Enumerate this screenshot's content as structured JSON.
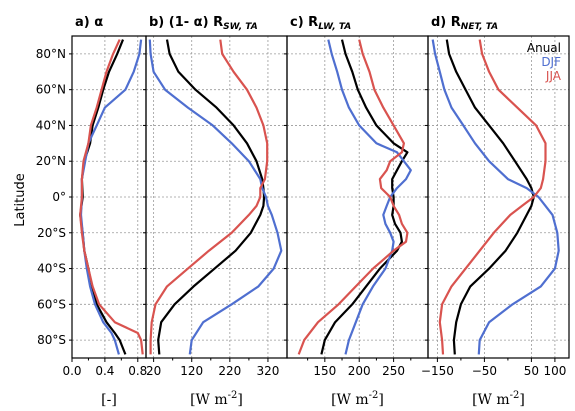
{
  "y_axis": {
    "label": "Latitude",
    "ticks": [
      {
        "value": 80,
        "label": "80°N"
      },
      {
        "value": 60,
        "label": "60°N"
      },
      {
        "value": 40,
        "label": "40°N"
      },
      {
        "value": 20,
        "label": "20°N"
      },
      {
        "value": 0,
        "label": "0°"
      },
      {
        "value": -20,
        "label": "20°S"
      },
      {
        "value": -40,
        "label": "40°S"
      },
      {
        "value": -60,
        "label": "60°S"
      },
      {
        "value": -80,
        "label": "80°S"
      }
    ]
  },
  "legend": [
    {
      "name": "Anual",
      "color": "#000000"
    },
    {
      "name": "DJF",
      "color": "#4f6fd0"
    },
    {
      "name": "JJA",
      "color": "#d9534f"
    }
  ],
  "chart_data": [
    {
      "type": "line",
      "title_prefix": "a) α",
      "title_sub": "",
      "unit_base": "[-]",
      "unit_sup": "",
      "xlim": [
        0.0,
        0.9
      ],
      "ylim": [
        -90,
        90
      ],
      "xticks": [
        0.0,
        0.4,
        0.8
      ],
      "xticklabels": [
        "0.0",
        "0.4",
        "0.8"
      ],
      "minor_xticks": [
        0.2,
        0.6
      ],
      "grid": true,
      "y": [
        88,
        80,
        70,
        60,
        50,
        40,
        30,
        20,
        10,
        0,
        -10,
        -20,
        -30,
        -40,
        -50,
        -60,
        -70,
        -76,
        -80,
        -88
      ],
      "series": [
        {
          "name": "Anual",
          "color": "#000000",
          "x": [
            0.62,
            0.55,
            0.45,
            0.38,
            0.32,
            0.25,
            0.22,
            0.15,
            0.12,
            0.13,
            0.1,
            0.13,
            0.15,
            0.2,
            0.24,
            0.3,
            0.42,
            0.52,
            0.58,
            0.65
          ]
        },
        {
          "name": "DJF",
          "color": "#4f6fd0",
          "x": [
            0.84,
            0.82,
            0.75,
            0.65,
            0.4,
            0.3,
            0.2,
            0.16,
            0.12,
            0.12,
            0.11,
            0.13,
            0.15,
            0.18,
            0.22,
            0.28,
            0.38,
            0.48,
            0.52,
            0.57
          ]
        },
        {
          "name": "JJA",
          "color": "#d9534f",
          "x": [
            0.58,
            0.5,
            0.42,
            0.36,
            0.3,
            0.23,
            0.2,
            0.14,
            0.12,
            0.12,
            0.1,
            0.12,
            0.15,
            0.2,
            0.25,
            0.33,
            0.52,
            0.8,
            0.84,
            0.86
          ]
        }
      ]
    },
    {
      "type": "line",
      "title_prefix": "b) (1- α) R",
      "title_sub": "SW, TA",
      "unit_base": "[W m",
      "unit_sup": "-2",
      "unit_end": "]",
      "xlim": [
        0,
        370
      ],
      "ylim": [
        -90,
        90
      ],
      "xticks": [
        20,
        120,
        220,
        320
      ],
      "xticklabels": [
        "20",
        "120",
        "220",
        "320"
      ],
      "minor_xticks": [
        70,
        170,
        270
      ],
      "grid": true,
      "y": [
        88,
        80,
        70,
        60,
        50,
        40,
        30,
        20,
        10,
        5,
        0,
        -5,
        -10,
        -20,
        -30,
        -40,
        -50,
        -60,
        -70,
        -80,
        -88
      ],
      "series": [
        {
          "name": "Anual",
          "color": "#000000",
          "x": [
            55,
            62,
            85,
            130,
            185,
            230,
            265,
            290,
            305,
            308,
            310,
            308,
            300,
            275,
            235,
            180,
            125,
            75,
            40,
            32,
            35
          ]
        },
        {
          "name": "DJF",
          "color": "#4f6fd0",
          "x": [
            10,
            12,
            20,
            50,
            110,
            175,
            225,
            270,
            300,
            305,
            315,
            320,
            330,
            345,
            355,
            335,
            295,
            225,
            150,
            120,
            115
          ]
        },
        {
          "name": "JJA",
          "color": "#d9534f",
          "x": [
            195,
            200,
            230,
            265,
            290,
            308,
            318,
            318,
            312,
            300,
            300,
            290,
            270,
            225,
            165,
            110,
            55,
            25,
            15,
            12,
            12
          ]
        }
      ]
    },
    {
      "type": "line",
      "title_prefix": "c) R",
      "title_sub": "LW, TA",
      "unit_base": "[W m",
      "unit_sup": "-2",
      "unit_end": "]",
      "xlim": [
        95,
        300
      ],
      "ylim": [
        -90,
        90
      ],
      "xticks": [
        150,
        200,
        250
      ],
      "xticklabels": [
        "150",
        "200",
        "250"
      ],
      "minor_xticks": [
        125,
        175,
        225,
        275
      ],
      "grid": true,
      "y": [
        88,
        80,
        70,
        60,
        50,
        40,
        30,
        25,
        20,
        15,
        10,
        5,
        0,
        -5,
        -10,
        -15,
        -20,
        -25,
        -30,
        -40,
        -50,
        -60,
        -70,
        -80,
        -88
      ],
      "series": [
        {
          "name": "Anual",
          "color": "#000000",
          "x": [
            175,
            180,
            190,
            198,
            210,
            225,
            250,
            270,
            262,
            255,
            248,
            248,
            250,
            250,
            248,
            252,
            260,
            262,
            255,
            230,
            210,
            190,
            165,
            150,
            145
          ]
        },
        {
          "name": "DJF",
          "color": "#4f6fd0",
          "x": [
            155,
            160,
            168,
            175,
            185,
            200,
            225,
            255,
            265,
            275,
            268,
            255,
            245,
            240,
            235,
            238,
            245,
            250,
            248,
            238,
            220,
            205,
            195,
            185,
            180
          ]
        },
        {
          "name": "JJA",
          "color": "#d9534f",
          "x": [
            200,
            205,
            215,
            222,
            235,
            250,
            265,
            262,
            245,
            240,
            230,
            232,
            245,
            250,
            258,
            262,
            270,
            268,
            250,
            220,
            195,
            170,
            140,
            120,
            112
          ]
        }
      ]
    },
    {
      "type": "line",
      "title_prefix": "d) R",
      "title_sub": "NET, TA",
      "unit_base": "[W m",
      "unit_sup": "-2",
      "unit_end": "]",
      "xlim": [
        -170,
        130
      ],
      "ylim": [
        -90,
        90
      ],
      "xticks": [
        -150,
        -50,
        50,
        100
      ],
      "xticklabels": [
        "−150",
        "−50",
        "50",
        "100"
      ],
      "minor_xticks": [
        -100,
        0
      ],
      "grid": true,
      "y": [
        88,
        80,
        70,
        60,
        50,
        40,
        30,
        20,
        10,
        5,
        0,
        -5,
        -10,
        -20,
        -30,
        -40,
        -50,
        -60,
        -70,
        -80,
        -88
      ],
      "series": [
        {
          "name": "Anual",
          "color": "#000000",
          "x": [
            -130,
            -125,
            -110,
            -90,
            -70,
            -40,
            -10,
            15,
            40,
            50,
            55,
            50,
            40,
            20,
            -5,
            -40,
            -80,
            -100,
            -110,
            -115,
            -113
          ]
        },
        {
          "name": "DJF",
          "color": "#4f6fd0",
          "x": [
            -160,
            -155,
            -145,
            -135,
            -120,
            -95,
            -70,
            -40,
            0,
            40,
            65,
            80,
            95,
            105,
            108,
            100,
            70,
            10,
            -40,
            -60,
            -62
          ]
        },
        {
          "name": "JJA",
          "color": "#d9534f",
          "x": [
            -60,
            -55,
            -40,
            -20,
            20,
            60,
            80,
            80,
            75,
            70,
            55,
            30,
            5,
            -30,
            -60,
            -90,
            -120,
            -140,
            -145,
            -140,
            -138
          ]
        }
      ]
    }
  ]
}
